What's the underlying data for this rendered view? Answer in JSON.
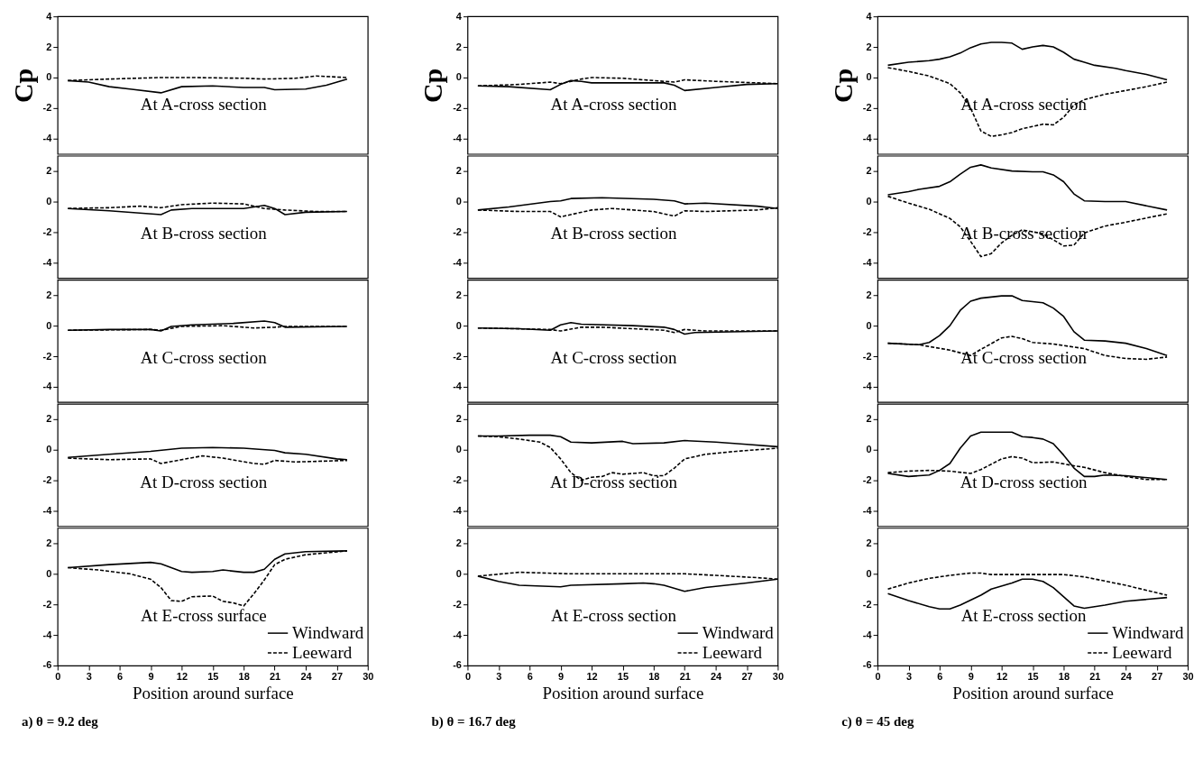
{
  "chart_data": [
    {
      "type": "line",
      "ylabel": "Cp",
      "annotations": [
        "At A-cross section"
      ],
      "xlim": [
        0,
        30
      ],
      "ylim": [
        -5,
        4
      ],
      "yticks": [
        4,
        2,
        0,
        -2,
        -4
      ],
      "tick_labels": "y",
      "series": [
        {
          "color": "#000000",
          "line_style": "solid",
          "x": [
            1,
            3,
            5,
            7,
            10,
            12,
            15,
            18,
            20,
            21,
            24,
            26,
            28
          ],
          "values": [
            -0.2,
            -0.3,
            -0.6,
            -0.75,
            -1.0,
            -0.6,
            -0.55,
            -0.65,
            -0.65,
            -0.8,
            -0.75,
            -0.5,
            -0.1
          ]
        },
        {
          "color": "#000000",
          "line_style": "dashed",
          "x": [
            1,
            5,
            10,
            13,
            18,
            20,
            23,
            25,
            28
          ],
          "values": [
            -0.2,
            -0.1,
            0.0,
            0.0,
            -0.05,
            -0.1,
            -0.05,
            0.1,
            0.0
          ]
        }
      ]
    },
    {
      "type": "line",
      "annotations": [
        "At B-cross section"
      ],
      "xlim": [
        0,
        30
      ],
      "ylim": [
        -5,
        3
      ],
      "yticks": [
        2,
        0,
        -2,
        -4
      ],
      "tick_labels": "y",
      "series": [
        {
          "color": "#000000",
          "line_style": "solid",
          "x": [
            1,
            5,
            10,
            11,
            13,
            18,
            20,
            21,
            22,
            24,
            28
          ],
          "values": [
            -0.45,
            -0.6,
            -0.85,
            -0.55,
            -0.45,
            -0.45,
            -0.25,
            -0.45,
            -0.85,
            -0.7,
            -0.65
          ]
        },
        {
          "color": "#000000",
          "line_style": "dashed",
          "x": [
            1,
            5,
            8,
            10,
            12,
            15,
            18,
            20,
            22,
            25,
            28
          ],
          "values": [
            -0.45,
            -0.4,
            -0.3,
            -0.4,
            -0.2,
            -0.1,
            -0.15,
            -0.45,
            -0.55,
            -0.65,
            -0.65
          ]
        }
      ]
    },
    {
      "type": "line",
      "annotations": [
        "At C-cross section"
      ],
      "xlim": [
        0,
        30
      ],
      "ylim": [
        -5,
        3
      ],
      "yticks": [
        2,
        0,
        -2,
        -4
      ],
      "tick_labels": "y",
      "series": [
        {
          "color": "#000000",
          "line_style": "solid",
          "x": [
            1,
            5,
            9,
            10,
            11,
            13,
            17,
            20,
            21,
            22,
            28
          ],
          "values": [
            -0.3,
            -0.25,
            -0.25,
            -0.35,
            -0.05,
            0.05,
            0.15,
            0.3,
            0.2,
            -0.1,
            -0.05
          ]
        },
        {
          "color": "#000000",
          "line_style": "dashed",
          "x": [
            1,
            9,
            10,
            12,
            16,
            17,
            19,
            21,
            22,
            28
          ],
          "values": [
            -0.3,
            -0.25,
            -0.3,
            -0.05,
            0.0,
            -0.05,
            -0.15,
            -0.1,
            -0.05,
            -0.05
          ]
        }
      ]
    },
    {
      "type": "line",
      "annotations": [
        "At D-cross section"
      ],
      "xlim": [
        0,
        30
      ],
      "ylim": [
        -5,
        3
      ],
      "yticks": [
        2,
        0,
        -2,
        -4
      ],
      "tick_labels": "y",
      "series": [
        {
          "color": "#000000",
          "line_style": "solid",
          "x": [
            1,
            5,
            9,
            12,
            15,
            18,
            21,
            22,
            24,
            27,
            28
          ],
          "values": [
            -0.5,
            -0.3,
            -0.1,
            0.1,
            0.15,
            0.1,
            -0.05,
            -0.2,
            -0.3,
            -0.6,
            -0.65
          ]
        },
        {
          "color": "#000000",
          "line_style": "dashed",
          "x": [
            1,
            5,
            9,
            10,
            12,
            14,
            16,
            19,
            20,
            21,
            23,
            28
          ],
          "values": [
            -0.55,
            -0.65,
            -0.6,
            -0.9,
            -0.65,
            -0.4,
            -0.55,
            -0.9,
            -0.95,
            -0.7,
            -0.8,
            -0.7
          ]
        }
      ]
    },
    {
      "type": "line",
      "xlabel": "Position around surface",
      "annotations": [
        "At E-cross surface",
        "a) θ = 9.2 deg"
      ],
      "xlim": [
        0,
        30
      ],
      "xticks": [
        0,
        3,
        6,
        9,
        12,
        15,
        18,
        21,
        24,
        27,
        30
      ],
      "ylim": [
        -6,
        3
      ],
      "yticks": [
        2,
        0,
        -2,
        -4,
        -6
      ],
      "legend": "bottom right",
      "series": [
        {
          "name": "Windward",
          "color": "#000000",
          "line_style": "solid",
          "x": [
            1,
            5,
            9,
            10,
            12,
            13,
            15,
            16,
            18,
            19,
            20,
            21,
            22,
            24,
            28
          ],
          "values": [
            0.4,
            0.6,
            0.75,
            0.65,
            0.15,
            0.1,
            0.15,
            0.25,
            0.1,
            0.1,
            0.3,
            0.95,
            1.3,
            1.45,
            1.5
          ]
        },
        {
          "name": "Leeward",
          "color": "#000000",
          "line_style": "dashed",
          "x": [
            1,
            4,
            7,
            9,
            10,
            11,
            12,
            13,
            15,
            16,
            17,
            18,
            19,
            20,
            21,
            22,
            24,
            28
          ],
          "values": [
            0.4,
            0.25,
            0.0,
            -0.35,
            -0.9,
            -1.75,
            -1.8,
            -1.5,
            -1.45,
            -1.8,
            -1.9,
            -2.1,
            -1.3,
            -0.4,
            0.6,
            0.95,
            1.25,
            1.5
          ]
        }
      ]
    },
    {
      "type": "line",
      "ylabel": "Cp",
      "annotations": [
        "At A-cross section"
      ],
      "xlim": [
        0,
        30
      ],
      "ylim": [
        -5,
        4
      ],
      "yticks": [
        4,
        2,
        0,
        -2,
        -4
      ],
      "tick_labels": "y",
      "series": [
        {
          "color": "#000000",
          "line_style": "solid",
          "x": [
            1,
            4,
            8,
            9,
            10,
            11,
            12,
            19,
            20,
            21,
            24,
            27,
            30
          ],
          "values": [
            -0.55,
            -0.6,
            -0.8,
            -0.45,
            -0.2,
            -0.25,
            -0.35,
            -0.35,
            -0.5,
            -0.85,
            -0.65,
            -0.45,
            -0.4
          ]
        },
        {
          "color": "#000000",
          "line_style": "dashed",
          "x": [
            1,
            5,
            8,
            9,
            10,
            11,
            12,
            15,
            18,
            20,
            21,
            24,
            30
          ],
          "values": [
            -0.55,
            -0.45,
            -0.3,
            -0.4,
            -0.25,
            -0.1,
            0.0,
            -0.05,
            -0.2,
            -0.3,
            -0.15,
            -0.25,
            -0.4
          ]
        }
      ]
    },
    {
      "type": "line",
      "annotations": [
        "At B-cross section"
      ],
      "xlim": [
        0,
        30
      ],
      "ylim": [
        -5,
        3
      ],
      "yticks": [
        2,
        0,
        -2,
        -4
      ],
      "tick_labels": "y",
      "series": [
        {
          "color": "#000000",
          "line_style": "solid",
          "x": [
            1,
            4,
            8,
            9,
            10,
            13,
            18,
            20,
            21,
            23,
            28,
            30
          ],
          "values": [
            -0.55,
            -0.35,
            0.0,
            0.05,
            0.2,
            0.25,
            0.15,
            0.05,
            -0.15,
            -0.1,
            -0.3,
            -0.45
          ]
        },
        {
          "color": "#000000",
          "line_style": "dashed",
          "x": [
            1,
            5,
            8,
            9,
            12,
            14,
            18,
            20,
            21,
            23,
            28,
            30
          ],
          "values": [
            -0.55,
            -0.65,
            -0.65,
            -1.0,
            -0.55,
            -0.45,
            -0.65,
            -0.95,
            -0.6,
            -0.65,
            -0.55,
            -0.4
          ]
        }
      ]
    },
    {
      "type": "line",
      "annotations": [
        "At C-cross section"
      ],
      "xlim": [
        0,
        30
      ],
      "ylim": [
        -5,
        3
      ],
      "yticks": [
        2,
        0,
        -2,
        -4
      ],
      "tick_labels": "y",
      "series": [
        {
          "color": "#000000",
          "line_style": "solid",
          "x": [
            1,
            5,
            8,
            9,
            10,
            11,
            16,
            19,
            20,
            21,
            22,
            30
          ],
          "values": [
            -0.15,
            -0.2,
            -0.3,
            0.05,
            0.2,
            0.1,
            0.0,
            -0.1,
            -0.25,
            -0.55,
            -0.45,
            -0.35
          ]
        },
        {
          "color": "#000000",
          "line_style": "dashed",
          "x": [
            1,
            8,
            9,
            11,
            13,
            16,
            19,
            20,
            21,
            23,
            30
          ],
          "values": [
            -0.15,
            -0.25,
            -0.35,
            -0.1,
            -0.1,
            -0.2,
            -0.3,
            -0.45,
            -0.25,
            -0.35,
            -0.35
          ]
        }
      ]
    },
    {
      "type": "line",
      "annotations": [
        "At D-cross section"
      ],
      "xlim": [
        0,
        30
      ],
      "ylim": [
        -5,
        3
      ],
      "yticks": [
        2,
        0,
        -2,
        -4
      ],
      "tick_labels": "y",
      "series": [
        {
          "color": "#000000",
          "line_style": "solid",
          "x": [
            1,
            3,
            6,
            8,
            9,
            10,
            12,
            15,
            16,
            19,
            21,
            24,
            27,
            30
          ],
          "values": [
            0.9,
            0.9,
            0.95,
            0.95,
            0.85,
            0.5,
            0.45,
            0.55,
            0.4,
            0.45,
            0.6,
            0.5,
            0.35,
            0.2
          ]
        },
        {
          "color": "#000000",
          "line_style": "dashed",
          "x": [
            1,
            3,
            5,
            7,
            8,
            9,
            10,
            11,
            12,
            13,
            14,
            15,
            17,
            18,
            19,
            20,
            21,
            23,
            26,
            30
          ],
          "values": [
            0.9,
            0.85,
            0.7,
            0.5,
            0.15,
            -0.6,
            -1.5,
            -2.0,
            -1.8,
            -1.75,
            -1.5,
            -1.6,
            -1.5,
            -1.7,
            -1.7,
            -1.2,
            -0.6,
            -0.3,
            -0.1,
            0.1
          ]
        }
      ]
    },
    {
      "type": "line",
      "xlabel": "Position around surface",
      "annotations": [
        "At E-cross section",
        "b) θ = 16.7 deg"
      ],
      "xlim": [
        0,
        30
      ],
      "xticks": [
        0,
        3,
        6,
        9,
        12,
        15,
        18,
        21,
        24,
        27,
        30
      ],
      "ylim": [
        -6,
        3
      ],
      "yticks": [
        2,
        0,
        -2,
        -4,
        -6
      ],
      "legend": "bottom right",
      "series": [
        {
          "name": "Windward",
          "color": "#000000",
          "line_style": "solid",
          "x": [
            1,
            3,
            5,
            9,
            10,
            15,
            17,
            18,
            19,
            21,
            23,
            27,
            30
          ],
          "values": [
            -0.15,
            -0.5,
            -0.75,
            -0.85,
            -0.75,
            -0.65,
            -0.6,
            -0.65,
            -0.75,
            -1.15,
            -0.9,
            -0.6,
            -0.35
          ]
        },
        {
          "name": "Leeward",
          "color": "#000000",
          "line_style": "dashed",
          "x": [
            1,
            5,
            10,
            21,
            24,
            28,
            30
          ],
          "values": [
            -0.15,
            0.1,
            0.0,
            0.0,
            -0.1,
            -0.25,
            -0.35
          ]
        }
      ]
    },
    {
      "type": "line",
      "ylabel": "Cp",
      "annotations": [
        "At A-cross section"
      ],
      "xlim": [
        0,
        30
      ],
      "ylim": [
        -5,
        4
      ],
      "yticks": [
        4,
        2,
        0,
        -2,
        -4
      ],
      "tick_labels": "y",
      "series": [
        {
          "color": "#000000",
          "line_style": "solid",
          "x": [
            1,
            3,
            5,
            6,
            7,
            8,
            9,
            10,
            11,
            12,
            13,
            14,
            15,
            16,
            17,
            18,
            19,
            20,
            21,
            23,
            24,
            26,
            28
          ],
          "values": [
            0.8,
            1.0,
            1.1,
            1.2,
            1.35,
            1.6,
            1.95,
            2.2,
            2.3,
            2.3,
            2.25,
            1.85,
            2.0,
            2.1,
            2.0,
            1.65,
            1.2,
            1.0,
            0.8,
            0.6,
            0.45,
            0.2,
            -0.15
          ]
        },
        {
          "color": "#000000",
          "line_style": "dashed",
          "x": [
            1,
            3,
            5,
            7,
            8,
            9,
            10,
            11,
            12,
            13,
            14,
            15,
            16,
            17,
            18,
            19,
            20,
            22,
            24,
            26,
            28
          ],
          "values": [
            0.65,
            0.4,
            0.1,
            -0.4,
            -1.0,
            -2.0,
            -3.5,
            -3.85,
            -3.75,
            -3.6,
            -3.35,
            -3.2,
            -3.05,
            -3.1,
            -2.6,
            -1.8,
            -1.45,
            -1.1,
            -0.85,
            -0.6,
            -0.3
          ]
        }
      ]
    },
    {
      "type": "line",
      "annotations": [
        "At B-cross section"
      ],
      "xlim": [
        0,
        30
      ],
      "ylim": [
        -5,
        3
      ],
      "yticks": [
        2,
        0,
        -2,
        -4
      ],
      "tick_labels": "y",
      "series": [
        {
          "color": "#000000",
          "line_style": "solid",
          "x": [
            1,
            3,
            4,
            6,
            7,
            8,
            9,
            10,
            11,
            13,
            15,
            16,
            17,
            18,
            19,
            20,
            22,
            24,
            28
          ],
          "values": [
            0.45,
            0.65,
            0.8,
            1.0,
            1.3,
            1.8,
            2.25,
            2.4,
            2.2,
            2.0,
            1.95,
            1.95,
            1.75,
            1.3,
            0.5,
            0.05,
            0.0,
            0.0,
            -0.55
          ]
        },
        {
          "color": "#000000",
          "line_style": "dashed",
          "x": [
            1,
            3,
            5,
            7,
            8,
            9,
            10,
            11,
            12,
            13,
            14,
            16,
            18,
            19,
            20,
            22,
            24,
            28
          ],
          "values": [
            0.35,
            -0.1,
            -0.5,
            -1.1,
            -1.65,
            -2.6,
            -3.6,
            -3.4,
            -2.7,
            -2.2,
            -1.85,
            -2.1,
            -2.9,
            -2.85,
            -2.05,
            -1.6,
            -1.35,
            -0.8
          ]
        }
      ]
    },
    {
      "type": "line",
      "annotations": [
        "At C-cross section"
      ],
      "xlim": [
        0,
        30
      ],
      "ylim": [
        -5,
        3
      ],
      "yticks": [
        2,
        0,
        -2,
        -4
      ],
      "tick_labels": "y",
      "series": [
        {
          "color": "#000000",
          "line_style": "solid",
          "x": [
            1,
            4,
            5,
            6,
            7,
            8,
            9,
            10,
            12,
            13,
            14,
            16,
            17,
            18,
            19,
            20,
            22,
            24,
            26,
            28
          ],
          "values": [
            -1.15,
            -1.25,
            -1.1,
            -0.65,
            0.0,
            1.0,
            1.6,
            1.8,
            1.95,
            1.95,
            1.65,
            1.5,
            1.15,
            0.6,
            -0.4,
            -0.95,
            -1.0,
            -1.15,
            -1.5,
            -1.95
          ]
        },
        {
          "color": "#000000",
          "line_style": "dashed",
          "x": [
            1,
            4,
            7,
            9,
            10,
            12,
            13,
            14,
            15,
            17,
            19,
            20,
            22,
            24,
            26,
            28
          ],
          "values": [
            -1.15,
            -1.25,
            -1.6,
            -1.95,
            -1.55,
            -0.8,
            -0.7,
            -0.85,
            -1.1,
            -1.2,
            -1.4,
            -1.5,
            -1.95,
            -2.15,
            -2.2,
            -2.05
          ]
        }
      ]
    },
    {
      "type": "line",
      "annotations": [
        "At D-cross section"
      ],
      "xlim": [
        0,
        30
      ],
      "ylim": [
        -5,
        3
      ],
      "yticks": [
        2,
        0,
        -2,
        -4
      ],
      "tick_labels": "y",
      "series": [
        {
          "color": "#000000",
          "line_style": "solid",
          "x": [
            1,
            3,
            5,
            6,
            7,
            8,
            9,
            10,
            12,
            13,
            14,
            15,
            16,
            17,
            18,
            19,
            20,
            21,
            22,
            24,
            28
          ],
          "values": [
            -1.55,
            -1.75,
            -1.65,
            -1.35,
            -0.9,
            0.1,
            0.9,
            1.15,
            1.15,
            1.15,
            0.85,
            0.8,
            0.7,
            0.4,
            -0.35,
            -1.2,
            -1.75,
            -1.75,
            -1.65,
            -1.7,
            -1.95
          ]
        },
        {
          "color": "#000000",
          "line_style": "dashed",
          "x": [
            1,
            3,
            5,
            7,
            9,
            10,
            12,
            13,
            14,
            15,
            17,
            19,
            20,
            22,
            24,
            26,
            28
          ],
          "values": [
            -1.5,
            -1.4,
            -1.35,
            -1.4,
            -1.55,
            -1.3,
            -0.6,
            -0.45,
            -0.55,
            -0.85,
            -0.8,
            -1.05,
            -1.15,
            -1.5,
            -1.75,
            -1.95,
            -1.95
          ]
        }
      ]
    },
    {
      "type": "line",
      "xlabel": "Position around surface",
      "annotations": [
        "At E-cross section",
        "c) θ = 45 deg"
      ],
      "xlim": [
        0,
        30
      ],
      "xticks": [
        0,
        3,
        6,
        9,
        12,
        15,
        18,
        21,
        24,
        27,
        30
      ],
      "ylim": [
        -6,
        3
      ],
      "yticks": [
        2,
        0,
        -2,
        -4,
        -6
      ],
      "legend": "bottom right",
      "series": [
        {
          "name": "Windward",
          "color": "#000000",
          "line_style": "solid",
          "x": [
            1,
            3,
            5,
            6,
            7,
            8,
            10,
            11,
            13,
            14,
            15,
            16,
            17,
            19,
            20,
            22,
            24,
            28
          ],
          "values": [
            -1.3,
            -1.75,
            -2.15,
            -2.3,
            -2.3,
            -2.05,
            -1.4,
            -1.0,
            -0.6,
            -0.35,
            -0.35,
            -0.5,
            -0.9,
            -2.1,
            -2.25,
            -2.05,
            -1.8,
            -1.55
          ]
        },
        {
          "name": "Leeward",
          "color": "#000000",
          "line_style": "dashed",
          "x": [
            1,
            3,
            5,
            7,
            9,
            10,
            11,
            14,
            18,
            20,
            24,
            28
          ],
          "values": [
            -1.0,
            -0.6,
            -0.3,
            -0.1,
            0.05,
            0.05,
            -0.05,
            -0.05,
            -0.05,
            -0.2,
            -0.75,
            -1.4
          ]
        }
      ]
    }
  ]
}
